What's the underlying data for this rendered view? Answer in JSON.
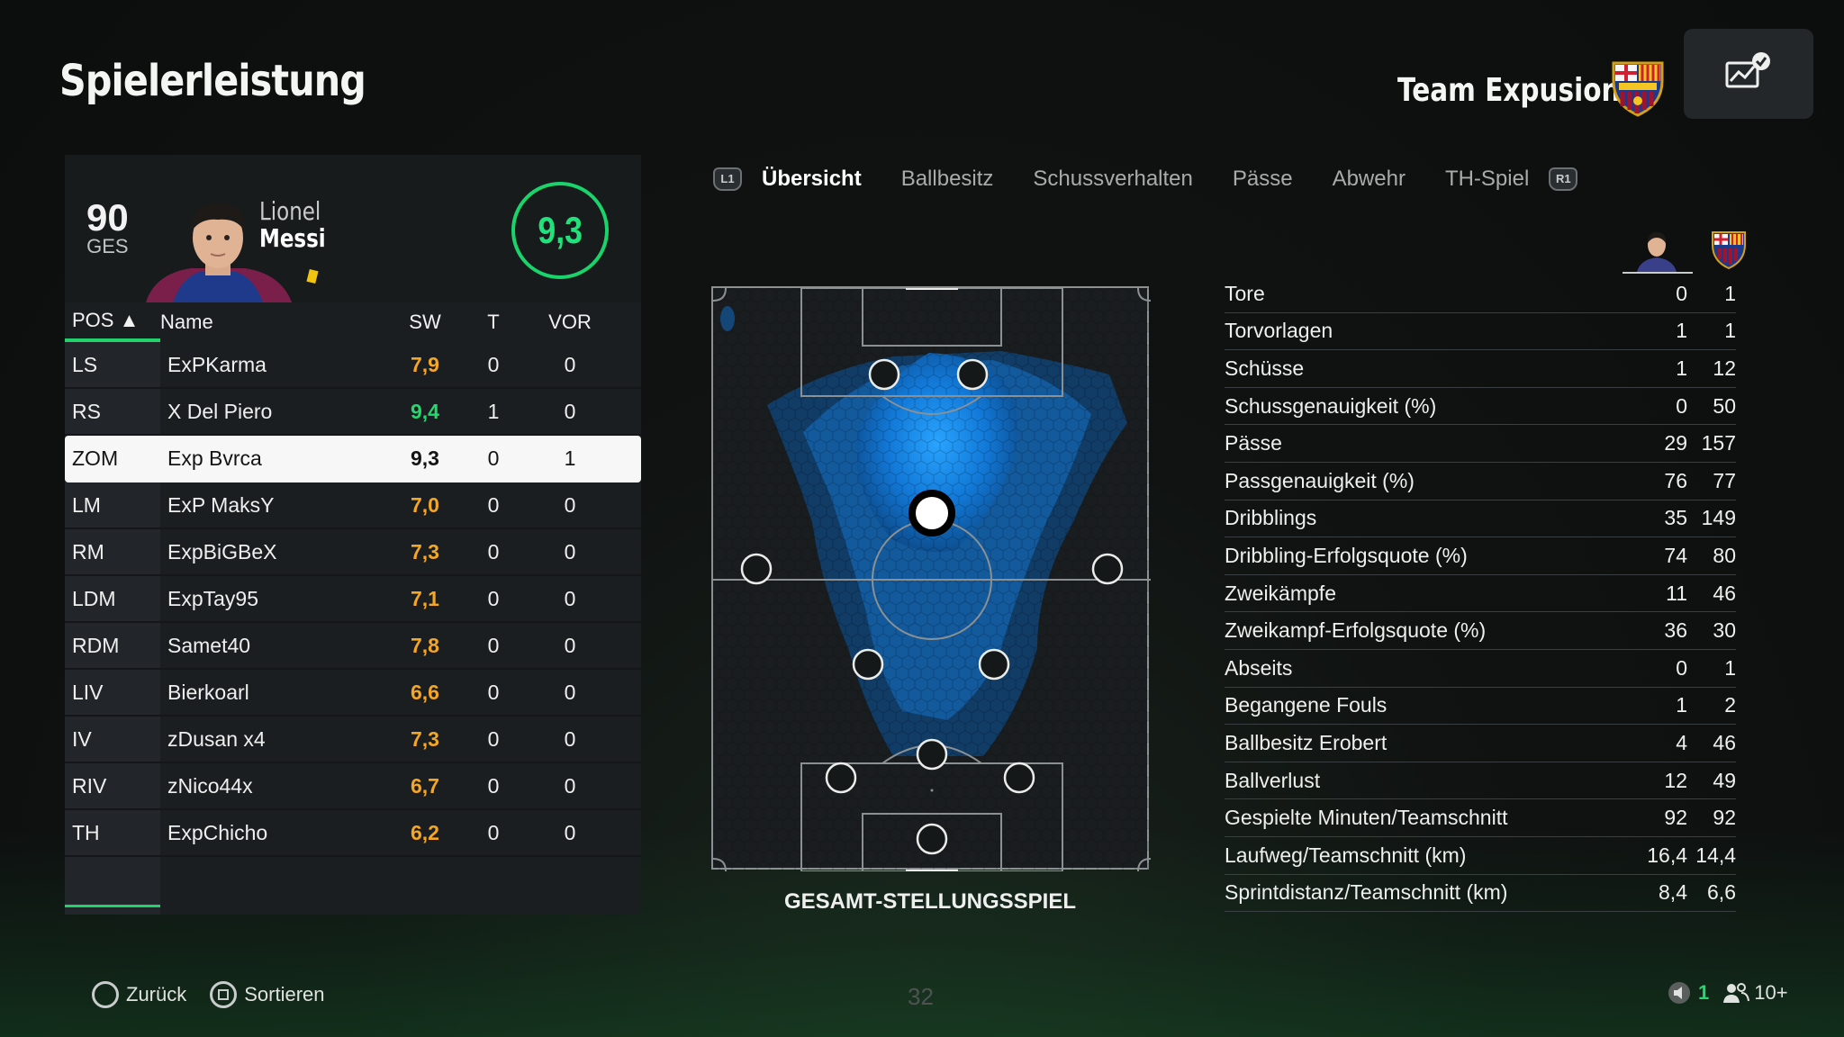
{
  "page": {
    "title": "Spielerleistung"
  },
  "team": {
    "name": "Team Expusion"
  },
  "player": {
    "ovr": "90",
    "ovr_label": "GES",
    "first_name": "Lionel",
    "last_name": "Messi",
    "rating": "9,3"
  },
  "table": {
    "headers": {
      "pos": "POS ▲",
      "name": "Name",
      "sw": "SW",
      "t": "T",
      "vor": "VOR"
    },
    "rows": [
      {
        "pos": "LS",
        "name": "ExPKarma",
        "sw": "7,9",
        "t": "0",
        "vor": "0",
        "sw_color": "orange"
      },
      {
        "pos": "RS",
        "name": "X Del Piero",
        "sw": "9,4",
        "t": "1",
        "vor": "0",
        "sw_color": "green"
      },
      {
        "pos": "ZOM",
        "name": "Exp Bvrca",
        "sw": "9,3",
        "t": "0",
        "vor": "1",
        "sw_color": "white",
        "selected": true
      },
      {
        "pos": "LM",
        "name": "ExP MaksY",
        "sw": "7,0",
        "t": "0",
        "vor": "0",
        "sw_color": "orange"
      },
      {
        "pos": "RM",
        "name": "ExpBiGBeX",
        "sw": "7,3",
        "t": "0",
        "vor": "0",
        "sw_color": "orange"
      },
      {
        "pos": "LDM",
        "name": "ExpTay95",
        "sw": "7,1",
        "t": "0",
        "vor": "0",
        "sw_color": "orange"
      },
      {
        "pos": "RDM",
        "name": "Samet40",
        "sw": "7,8",
        "t": "0",
        "vor": "0",
        "sw_color": "orange"
      },
      {
        "pos": "LIV",
        "name": "Bierkoarl",
        "sw": "6,6",
        "t": "0",
        "vor": "0",
        "sw_color": "orange"
      },
      {
        "pos": "IV",
        "name": "zDusan x4",
        "sw": "7,3",
        "t": "0",
        "vor": "0",
        "sw_color": "orange"
      },
      {
        "pos": "RIV",
        "name": "zNico44x",
        "sw": "6,7",
        "t": "0",
        "vor": "0",
        "sw_color": "orange"
      },
      {
        "pos": "TH",
        "name": "ExpChicho",
        "sw": "6,2",
        "t": "0",
        "vor": "0",
        "sw_color": "orange"
      }
    ]
  },
  "tabs": {
    "l1": "L1",
    "r1": "R1",
    "items": [
      "Übersicht",
      "Ballbesitz",
      "Schussverhalten",
      "Pässe",
      "Abwehr",
      "TH-Spiel"
    ],
    "active": 0
  },
  "pitch": {
    "caption": "GESAMT-STELLUNGSSPIEL"
  },
  "stats": [
    {
      "label": "Tore",
      "player": "0",
      "team": "1"
    },
    {
      "label": "Torvorlagen",
      "player": "1",
      "team": "1"
    },
    {
      "label": "Schüsse",
      "player": "1",
      "team": "12"
    },
    {
      "label": "Schussgenauigkeit (%)",
      "player": "0",
      "team": "50"
    },
    {
      "label": "Pässe",
      "player": "29",
      "team": "157"
    },
    {
      "label": "Passgenauigkeit (%)",
      "player": "76",
      "team": "77"
    },
    {
      "label": "Dribblings",
      "player": "35",
      "team": "149"
    },
    {
      "label": "Dribbling-Erfolgsquote (%)",
      "player": "74",
      "team": "80"
    },
    {
      "label": "Zweikämpfe",
      "player": "11",
      "team": "46"
    },
    {
      "label": "Zweikampf-Erfolgsquote (%)",
      "player": "36",
      "team": "30"
    },
    {
      "label": "Abseits",
      "player": "0",
      "team": "1"
    },
    {
      "label": "Begangene Fouls",
      "player": "1",
      "team": "2"
    },
    {
      "label": "Ballbesitz Erobert",
      "player": "4",
      "team": "46"
    },
    {
      "label": "Ballverlust",
      "player": "12",
      "team": "49"
    },
    {
      "label": "Gespielte Minuten/Teamschnitt",
      "player": "92",
      "team": "92"
    },
    {
      "label": "Laufweg/Teamschnitt (km)",
      "player": "16,4",
      "team": "14,4"
    },
    {
      "label": "Sprintdistanz/Teamschnitt (km)",
      "player": "8,4",
      "team": "6,6"
    }
  ],
  "footer": {
    "back_label": "Zurück",
    "sort_label": "Sortieren",
    "page_number": "32",
    "count_green": "1",
    "players_label": "10+"
  },
  "colors": {
    "accent_green": "#22d36b",
    "orange": "#f5a623",
    "heat_blue": "#1e90ff"
  }
}
